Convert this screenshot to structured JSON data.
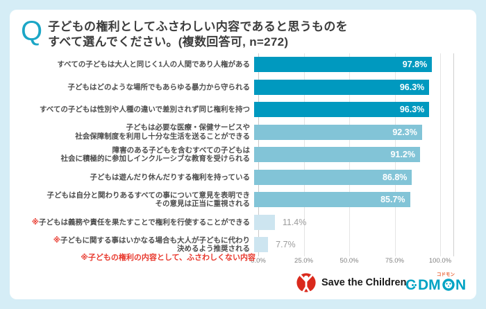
{
  "header": {
    "q_mark": "Q",
    "title_line1": "子どもの権利としてふさわしい内容であると思うものを",
    "title_line2": "すべて選んでください。(複数回答可, n=272)"
  },
  "chart_data": {
    "type": "bar",
    "orientation": "horizontal",
    "title": "子どもの権利としてふさわしい内容であると思うものをすべて選んでください。(複数回答可, n=272)",
    "sample_note": "複数回答可, n=272",
    "xlim": [
      0,
      100
    ],
    "grid": true,
    "x_ticks": [
      {
        "label": "0.0%",
        "value": 0
      },
      {
        "label": "25.0%",
        "value": 25
      },
      {
        "label": "50.0%",
        "value": 50
      },
      {
        "label": "75.0%",
        "value": 75
      },
      {
        "label": "100.0%",
        "value": 100
      }
    ],
    "rows": [
      {
        "lines": [
          "すべての子どもは大人と同じく1人の人間であり人権がある"
        ],
        "value": 97.8,
        "value_label": "97.8%",
        "tier": "dark",
        "not_a_right": false
      },
      {
        "lines": [
          "子どもはどのような場所でもあらゆる暴力から守られる"
        ],
        "value": 96.3,
        "value_label": "96.3%",
        "tier": "dark",
        "not_a_right": false
      },
      {
        "lines": [
          "すべての子どもは性別や人種の違いで差別されず同じ権利を持つ"
        ],
        "value": 96.3,
        "value_label": "96.3%",
        "tier": "dark",
        "not_a_right": false
      },
      {
        "lines": [
          "子どもは必要な医療・保健サービスや",
          "社会保障制度を利用し十分な生活を送ることができる"
        ],
        "value": 92.3,
        "value_label": "92.3%",
        "tier": "mid",
        "not_a_right": false
      },
      {
        "lines": [
          "障害のある子どもを含むすべての子どもは",
          "社会に積極的に参加しインクルーシブな教育を受けられる"
        ],
        "value": 91.2,
        "value_label": "91.2%",
        "tier": "mid",
        "not_a_right": false
      },
      {
        "lines": [
          "子どもは遊んだり休んだりする権利を持っている"
        ],
        "value": 86.8,
        "value_label": "86.8%",
        "tier": "mid",
        "not_a_right": false
      },
      {
        "lines": [
          "子どもは自分と関わりあるすべての事について意見を表明でき",
          "その意見は正当に重視される"
        ],
        "value": 85.7,
        "value_label": "85.7%",
        "tier": "mid",
        "not_a_right": false
      },
      {
        "lines": [
          "※子どもは義務や責任を果たすことで権利を行使することができる"
        ],
        "value": 11.4,
        "value_label": "11.4%",
        "tier": "pale",
        "not_a_right": true
      },
      {
        "lines": [
          "※子どもに関する事はいかなる場合も大人が子どもに代わり",
          "決めるよう推奨される"
        ],
        "value": 7.7,
        "value_label": "7.7%",
        "tier": "pale",
        "not_a_right": true
      }
    ],
    "footnote": "※子どもの権利の内容として、ふさわしくない内容"
  },
  "footer": {
    "logo1_text": "Save the Children",
    "logo2_text": "CoDMON",
    "logo2_katakana": "コドモン"
  },
  "colors": {
    "background": "#d5edf6",
    "card": "#ffffff",
    "accent_q": "#1ba6c6",
    "bar_dark": "#0099bf",
    "bar_mid": "#82c4d7",
    "bar_pale": "#cde5f0",
    "value_inside": "#ffffff",
    "value_outside": "#9c9c9c",
    "label_text": "#4d4d4d",
    "note_red": "#e8382d",
    "stc_red": "#da291c",
    "codmon_teal": "#00a3c4"
  }
}
